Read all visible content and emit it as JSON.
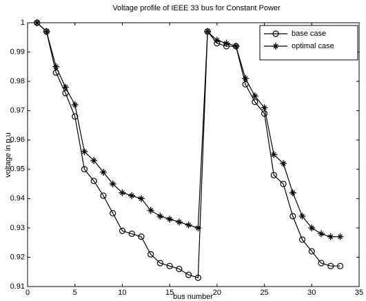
{
  "chart_data": {
    "type": "line",
    "title": "Voltage profile of IEEE 33 bus for Constant Power",
    "xlabel": "bus number",
    "ylabel": "voltage in p.u",
    "x": [
      1,
      2,
      3,
      4,
      5,
      6,
      7,
      8,
      9,
      10,
      11,
      12,
      13,
      14,
      15,
      16,
      17,
      18,
      19,
      20,
      21,
      22,
      23,
      24,
      25,
      26,
      27,
      28,
      29,
      30,
      31,
      32,
      33
    ],
    "series": [
      {
        "name": "base case",
        "color": "#000000",
        "marker": "circle",
        "values": [
          1.0,
          0.997,
          0.983,
          0.976,
          0.968,
          0.95,
          0.946,
          0.941,
          0.935,
          0.929,
          0.928,
          0.927,
          0.921,
          0.918,
          0.917,
          0.916,
          0.914,
          0.913,
          0.997,
          0.993,
          0.992,
          0.992,
          0.979,
          0.973,
          0.969,
          0.948,
          0.945,
          0.934,
          0.926,
          0.922,
          0.918,
          0.917,
          0.917
        ]
      },
      {
        "name": "optimal case",
        "color": "#000000",
        "marker": "star",
        "values": [
          1.0,
          0.997,
          0.985,
          0.978,
          0.972,
          0.956,
          0.953,
          0.949,
          0.945,
          0.942,
          0.941,
          0.94,
          0.936,
          0.934,
          0.933,
          0.932,
          0.931,
          0.93,
          0.997,
          0.994,
          0.993,
          0.992,
          0.981,
          0.975,
          0.971,
          0.955,
          0.952,
          0.942,
          0.934,
          0.93,
          0.928,
          0.927,
          0.927
        ]
      }
    ],
    "xlim": [
      0,
      35
    ],
    "xticks": [
      0,
      5,
      10,
      15,
      20,
      25,
      30,
      35
    ],
    "ylim": [
      0.91,
      1
    ],
    "yticks": [
      0.91,
      0.92,
      0.93,
      0.94,
      0.95,
      0.96,
      0.97,
      0.98,
      0.99,
      1
    ],
    "grid": false,
    "legend": "upper right"
  }
}
